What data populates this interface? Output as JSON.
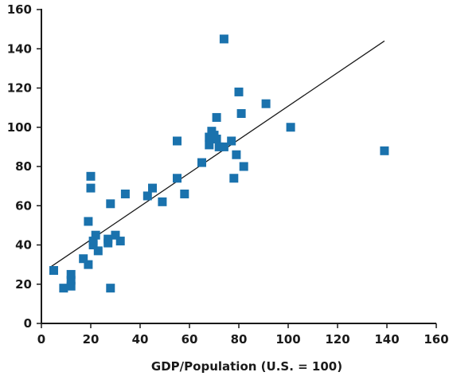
{
  "chart_data": {
    "type": "scatter",
    "title": "",
    "xlabel": "GDP/Population (U.S. = 100)",
    "ylabel": "",
    "xlim": [
      0,
      160
    ],
    "ylim": [
      0,
      160
    ],
    "x_ticks": [
      0,
      20,
      40,
      60,
      80,
      100,
      120,
      140,
      160
    ],
    "y_ticks": [
      0,
      20,
      40,
      60,
      80,
      100,
      120,
      140,
      160
    ],
    "grid": false,
    "legend": "none",
    "marker_color": "#1a72ad",
    "series": [
      {
        "points": [
          [
            5,
            27
          ],
          [
            9,
            18
          ],
          [
            12,
            19
          ],
          [
            12,
            22
          ],
          [
            12,
            25
          ],
          [
            17,
            33
          ],
          [
            19,
            30
          ],
          [
            19,
            52
          ],
          [
            20,
            75
          ],
          [
            20,
            69
          ],
          [
            21,
            40
          ],
          [
            21,
            42
          ],
          [
            22,
            45
          ],
          [
            23,
            37
          ],
          [
            27,
            41
          ],
          [
            27,
            43
          ],
          [
            28,
            61
          ],
          [
            28,
            18
          ],
          [
            30,
            45
          ],
          [
            32,
            42
          ],
          [
            34,
            66
          ],
          [
            43,
            65
          ],
          [
            45,
            69
          ],
          [
            49,
            62
          ],
          [
            55,
            74
          ],
          [
            55,
            93
          ],
          [
            58,
            66
          ],
          [
            65,
            82
          ],
          [
            68,
            91
          ],
          [
            68,
            95
          ],
          [
            69,
            98
          ],
          [
            70,
            96
          ],
          [
            71,
            105
          ],
          [
            71,
            94
          ],
          [
            72,
            90
          ],
          [
            74,
            90
          ],
          [
            74,
            145
          ],
          [
            77,
            93
          ],
          [
            78,
            74
          ],
          [
            79,
            86
          ],
          [
            80,
            118
          ],
          [
            81,
            107
          ],
          [
            82,
            80
          ],
          [
            91,
            112
          ],
          [
            101,
            100
          ],
          [
            139,
            88
          ]
        ]
      }
    ],
    "trendline": {
      "x": [
        4,
        139
      ],
      "y": [
        29,
        144
      ]
    }
  }
}
